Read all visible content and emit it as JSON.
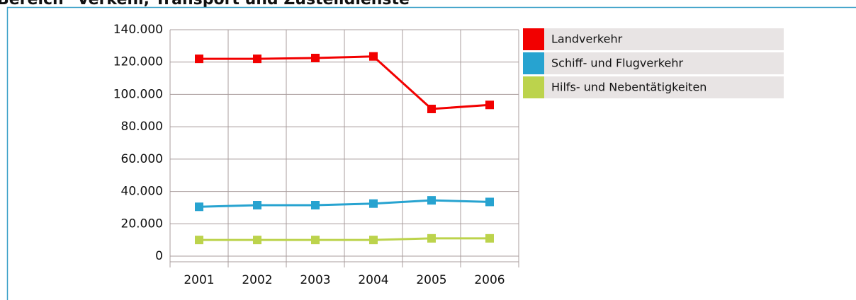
{
  "chart_data": {
    "type": "line",
    "title": "Bereich \"Verkehr, Transport und Zustelldienste\"",
    "categories": [
      "2001",
      "2002",
      "2003",
      "2004",
      "2005",
      "2006"
    ],
    "series": [
      {
        "name": "Landverkehr",
        "color": "#f20000",
        "values": [
          122000,
          122000,
          122500,
          123500,
          91000,
          93500
        ]
      },
      {
        "name": "Schiff- und Flugverkehr",
        "color": "#27a3d0",
        "values": [
          30500,
          31500,
          31500,
          32500,
          34500,
          33500
        ]
      },
      {
        "name": "Hilfs- und Nebentätigkeiten",
        "color": "#bcd34c",
        "values": [
          10000,
          10000,
          10000,
          10000,
          11000,
          11000
        ]
      }
    ],
    "ylim": [
      0,
      140000
    ],
    "yticks": [
      0,
      {
        "value": 20000,
        "label": "20.000"
      },
      {
        "value": 40000,
        "label": "40.000"
      },
      {
        "value": 60000,
        "label": "60.000"
      },
      {
        "value": 80000,
        "label": "80.000"
      },
      {
        "value": 100000,
        "label": "100.000"
      },
      {
        "value": 120000,
        "label": "120.000"
      },
      {
        "value": 140000,
        "label": "140.000"
      }
    ],
    "grid": true,
    "legend": "right"
  }
}
